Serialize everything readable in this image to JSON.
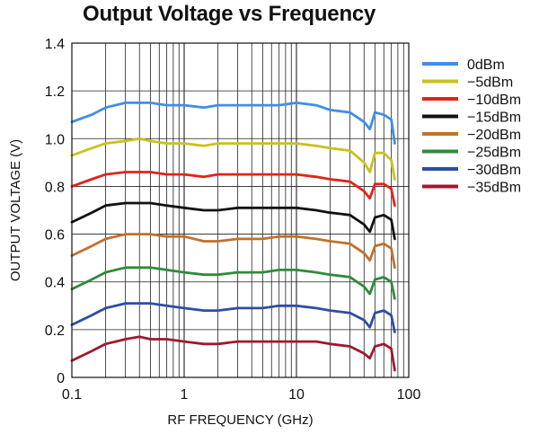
{
  "chart_data": {
    "type": "line",
    "title": "Output Voltage vs Frequency",
    "xlabel": "RF FREQUENCY (GHz)",
    "ylabel": "OUTPUT VOLTAGE (V)",
    "x_scale": "log",
    "xlim": [
      0.1,
      100
    ],
    "ylim": [
      0,
      1.4
    ],
    "x_tick_labels": [
      "0.1",
      "1",
      "10",
      "100"
    ],
    "y_tick_labels": [
      "0",
      "0.2",
      "0.4",
      "0.6",
      "0.8",
      "1.0",
      "1.2",
      "1.4"
    ],
    "grid": true,
    "legend_position": "right",
    "x": [
      0.1,
      0.15,
      0.2,
      0.3,
      0.4,
      0.5,
      0.7,
      1,
      1.5,
      2,
      3,
      5,
      7,
      10,
      15,
      20,
      30,
      40,
      45,
      50,
      60,
      70,
      75
    ],
    "series": [
      {
        "name": "0dBm",
        "color": "#3f8ee8",
        "values": [
          1.07,
          1.1,
          1.13,
          1.15,
          1.15,
          1.15,
          1.14,
          1.14,
          1.13,
          1.14,
          1.14,
          1.14,
          1.14,
          1.15,
          1.14,
          1.12,
          1.11,
          1.07,
          1.04,
          1.11,
          1.1,
          1.08,
          0.98
        ]
      },
      {
        "name": "−5dBm",
        "color": "#c8c21f",
        "values": [
          0.93,
          0.96,
          0.98,
          0.99,
          1.0,
          0.99,
          0.98,
          0.98,
          0.97,
          0.98,
          0.98,
          0.98,
          0.98,
          0.98,
          0.97,
          0.96,
          0.95,
          0.9,
          0.86,
          0.94,
          0.94,
          0.91,
          0.83
        ]
      },
      {
        "name": "−10dBm",
        "color": "#e2231a",
        "values": [
          0.8,
          0.83,
          0.85,
          0.86,
          0.86,
          0.86,
          0.85,
          0.85,
          0.84,
          0.85,
          0.85,
          0.85,
          0.85,
          0.85,
          0.84,
          0.83,
          0.82,
          0.78,
          0.75,
          0.81,
          0.81,
          0.79,
          0.72
        ]
      },
      {
        "name": "−15dBm",
        "color": "#111111",
        "values": [
          0.65,
          0.69,
          0.72,
          0.73,
          0.73,
          0.73,
          0.72,
          0.71,
          0.7,
          0.7,
          0.71,
          0.71,
          0.71,
          0.71,
          0.7,
          0.69,
          0.68,
          0.64,
          0.61,
          0.67,
          0.68,
          0.66,
          0.58
        ]
      },
      {
        "name": "−20dBm",
        "color": "#c0712a",
        "values": [
          0.51,
          0.55,
          0.58,
          0.6,
          0.6,
          0.6,
          0.59,
          0.59,
          0.57,
          0.57,
          0.58,
          0.58,
          0.59,
          0.59,
          0.58,
          0.57,
          0.56,
          0.52,
          0.49,
          0.55,
          0.56,
          0.54,
          0.46
        ]
      },
      {
        "name": "−25dBm",
        "color": "#2e8b3a",
        "values": [
          0.37,
          0.41,
          0.44,
          0.46,
          0.46,
          0.46,
          0.45,
          0.44,
          0.43,
          0.43,
          0.44,
          0.44,
          0.45,
          0.45,
          0.44,
          0.43,
          0.42,
          0.38,
          0.35,
          0.41,
          0.42,
          0.4,
          0.33
        ]
      },
      {
        "name": "−30dBm",
        "color": "#2f4ca8",
        "values": [
          0.22,
          0.26,
          0.29,
          0.31,
          0.31,
          0.31,
          0.3,
          0.29,
          0.28,
          0.28,
          0.29,
          0.29,
          0.3,
          0.3,
          0.29,
          0.28,
          0.27,
          0.24,
          0.21,
          0.27,
          0.28,
          0.26,
          0.19
        ]
      },
      {
        "name": "−35dBm",
        "color": "#a01830",
        "values": [
          0.07,
          0.11,
          0.14,
          0.16,
          0.17,
          0.16,
          0.16,
          0.15,
          0.14,
          0.14,
          0.15,
          0.15,
          0.15,
          0.15,
          0.15,
          0.14,
          0.13,
          0.1,
          0.08,
          0.13,
          0.14,
          0.12,
          0.03
        ]
      }
    ]
  }
}
